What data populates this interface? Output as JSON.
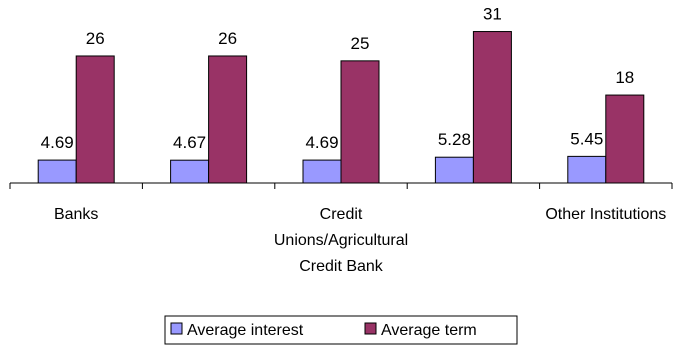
{
  "chart_data": {
    "type": "bar",
    "categories": [
      [
        "Banks"
      ],
      [
        ""
      ],
      [
        "Credit",
        "Unions/Agricultural",
        "Credit Bank"
      ],
      [
        ""
      ],
      [
        "Other Institutions"
      ]
    ],
    "series": [
      {
        "name": "Average interest",
        "values": [
          4.69,
          4.67,
          4.69,
          5.28,
          5.45
        ],
        "labels": [
          "4.69",
          "4.67",
          "4.69",
          "5.28",
          "5.45"
        ],
        "color": "#9999ff"
      },
      {
        "name": "Average term",
        "values": [
          26,
          26,
          25,
          31,
          18
        ],
        "labels": [
          "26",
          "26",
          "25",
          "31",
          "18"
        ],
        "color": "#993366"
      }
    ],
    "ylim": [
      0,
      35
    ],
    "grid": false,
    "legend": "bottom"
  }
}
